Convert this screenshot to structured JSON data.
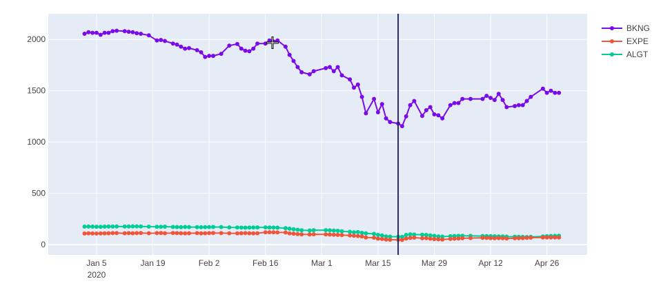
{
  "chart_data": {
    "type": "line",
    "x_axis_type": "date",
    "x_range": [
      "2019-12-24",
      "2020-05-06"
    ],
    "y_range": [
      -100,
      2250
    ],
    "x_ticks": [
      {
        "value": "2020-01-05",
        "label": "Jan 5",
        "sublabel": "2020"
      },
      {
        "value": "2020-01-19",
        "label": "Jan 19"
      },
      {
        "value": "2020-02-02",
        "label": "Feb 2"
      },
      {
        "value": "2020-02-16",
        "label": "Feb 16"
      },
      {
        "value": "2020-03-01",
        "label": "Mar 1"
      },
      {
        "value": "2020-03-15",
        "label": "Mar 15"
      },
      {
        "value": "2020-03-29",
        "label": "Mar 29"
      },
      {
        "value": "2020-04-12",
        "label": "Apr 12"
      },
      {
        "value": "2020-04-26",
        "label": "Apr 26"
      }
    ],
    "y_ticks": [
      0,
      500,
      1000,
      1500,
      2000
    ],
    "gridlines": true,
    "legend_position": "top-right",
    "vertical_line": {
      "x": "2020-03-20",
      "color": "#2a2a5a"
    },
    "plot_bg": "#e5ecf6",
    "series": [
      {
        "name": "BKNG",
        "color": "#7a0be8",
        "x": [
          "2020-01-02",
          "2020-01-03",
          "2020-01-04",
          "2020-01-05",
          "2020-01-06",
          "2020-01-07",
          "2020-01-08",
          "2020-01-09",
          "2020-01-10",
          "2020-01-12",
          "2020-01-13",
          "2020-01-14",
          "2020-01-15",
          "2020-01-16",
          "2020-01-18",
          "2020-01-20",
          "2020-01-21",
          "2020-01-22",
          "2020-01-24",
          "2020-01-25",
          "2020-01-26",
          "2020-01-27",
          "2020-01-28",
          "2020-01-30",
          "2020-01-31",
          "2020-02-01",
          "2020-02-02",
          "2020-02-03",
          "2020-02-05",
          "2020-02-07",
          "2020-02-09",
          "2020-02-10",
          "2020-02-11",
          "2020-02-12",
          "2020-02-13",
          "2020-02-14",
          "2020-02-16",
          "2020-02-17",
          "2020-02-18",
          "2020-02-19",
          "2020-02-21",
          "2020-02-22",
          "2020-02-23",
          "2020-02-24",
          "2020-02-25",
          "2020-02-27",
          "2020-02-28",
          "2020-03-02",
          "2020-03-03",
          "2020-03-04",
          "2020-03-05",
          "2020-03-06",
          "2020-03-08",
          "2020-03-09",
          "2020-03-10",
          "2020-03-11",
          "2020-03-12",
          "2020-03-14",
          "2020-03-15",
          "2020-03-16",
          "2020-03-17",
          "2020-03-18",
          "2020-03-20",
          "2020-03-21",
          "2020-03-22",
          "2020-03-23",
          "2020-03-24",
          "2020-03-26",
          "2020-03-27",
          "2020-03-28",
          "2020-03-29",
          "2020-03-30",
          "2020-03-31",
          "2020-04-02",
          "2020-04-03",
          "2020-04-04",
          "2020-04-05",
          "2020-04-07",
          "2020-04-10",
          "2020-04-11",
          "2020-04-12",
          "2020-04-13",
          "2020-04-14",
          "2020-04-15",
          "2020-04-16",
          "2020-04-18",
          "2020-04-19",
          "2020-04-20",
          "2020-04-21",
          "2020-04-22",
          "2020-04-25",
          "2020-04-26",
          "2020-04-27",
          "2020-04-28",
          "2020-04-29"
        ],
        "y": [
          2055,
          2070,
          2065,
          2065,
          2045,
          2065,
          2065,
          2080,
          2085,
          2080,
          2075,
          2070,
          2060,
          2055,
          2040,
          1990,
          1995,
          1985,
          1960,
          1950,
          1930,
          1910,
          1915,
          1895,
          1875,
          1830,
          1840,
          1840,
          1860,
          1940,
          1955,
          1910,
          1890,
          1885,
          1910,
          1960,
          1960,
          1990,
          1980,
          1990,
          1930,
          1850,
          1790,
          1730,
          1680,
          1660,
          1690,
          1720,
          1730,
          1690,
          1730,
          1650,
          1610,
          1530,
          1560,
          1440,
          1280,
          1420,
          1290,
          1370,
          1230,
          1195,
          1180,
          1155,
          1250,
          1360,
          1400,
          1255,
          1310,
          1340,
          1270,
          1260,
          1230,
          1360,
          1380,
          1380,
          1420,
          1420,
          1420,
          1450,
          1430,
          1410,
          1470,
          1410,
          1340,
          1350,
          1360,
          1360,
          1400,
          1440,
          1520,
          1480,
          1500,
          1480,
          1480
        ]
      },
      {
        "name": "EXPE",
        "color": "#ef553b",
        "x": [
          "2020-01-02",
          "2020-01-03",
          "2020-01-04",
          "2020-01-05",
          "2020-01-06",
          "2020-01-07",
          "2020-01-08",
          "2020-01-09",
          "2020-01-10",
          "2020-01-12",
          "2020-01-13",
          "2020-01-14",
          "2020-01-15",
          "2020-01-16",
          "2020-01-18",
          "2020-01-20",
          "2020-01-21",
          "2020-01-22",
          "2020-01-24",
          "2020-01-25",
          "2020-01-26",
          "2020-01-27",
          "2020-01-28",
          "2020-01-30",
          "2020-01-31",
          "2020-02-01",
          "2020-02-02",
          "2020-02-03",
          "2020-02-05",
          "2020-02-07",
          "2020-02-09",
          "2020-02-10",
          "2020-02-11",
          "2020-02-12",
          "2020-02-13",
          "2020-02-14",
          "2020-02-16",
          "2020-02-17",
          "2020-02-18",
          "2020-02-19",
          "2020-02-21",
          "2020-02-22",
          "2020-02-23",
          "2020-02-24",
          "2020-02-25",
          "2020-02-27",
          "2020-02-28",
          "2020-03-02",
          "2020-03-03",
          "2020-03-04",
          "2020-03-05",
          "2020-03-06",
          "2020-03-08",
          "2020-03-09",
          "2020-03-10",
          "2020-03-11",
          "2020-03-12",
          "2020-03-14",
          "2020-03-15",
          "2020-03-16",
          "2020-03-17",
          "2020-03-18",
          "2020-03-20",
          "2020-03-21",
          "2020-03-22",
          "2020-03-23",
          "2020-03-24",
          "2020-03-26",
          "2020-03-27",
          "2020-03-28",
          "2020-03-29",
          "2020-03-30",
          "2020-03-31",
          "2020-04-02",
          "2020-04-03",
          "2020-04-04",
          "2020-04-05",
          "2020-04-07",
          "2020-04-10",
          "2020-04-11",
          "2020-04-12",
          "2020-04-13",
          "2020-04-14",
          "2020-04-15",
          "2020-04-16",
          "2020-04-18",
          "2020-04-19",
          "2020-04-20",
          "2020-04-21",
          "2020-04-22",
          "2020-04-25",
          "2020-04-26",
          "2020-04-27",
          "2020-04-28",
          "2020-04-29"
        ],
        "y": [
          108,
          110,
          109,
          108,
          109,
          110,
          111,
          112,
          112,
          111,
          112,
          111,
          112,
          113,
          111,
          112,
          113,
          111,
          113,
          112,
          111,
          110,
          111,
          112,
          110,
          111,
          112,
          113,
          112,
          111,
          110,
          111,
          112,
          111,
          110,
          111,
          120,
          121,
          120,
          119,
          118,
          110,
          106,
          102,
          100,
          99,
          101,
          100,
          98,
          96,
          95,
          93,
          90,
          86,
          84,
          80,
          70,
          68,
          58,
          55,
          50,
          48,
          47,
          46,
          60,
          65,
          68,
          62,
          63,
          58,
          54,
          52,
          50,
          55,
          58,
          60,
          62,
          64,
          66,
          65,
          63,
          62,
          64,
          62,
          60,
          62,
          63,
          64,
          66,
          68,
          70,
          69,
          70,
          69,
          70
        ]
      },
      {
        "name": "ALGT",
        "color": "#00cc96",
        "x": [
          "2020-01-02",
          "2020-01-03",
          "2020-01-04",
          "2020-01-05",
          "2020-01-06",
          "2020-01-07",
          "2020-01-08",
          "2020-01-09",
          "2020-01-10",
          "2020-01-12",
          "2020-01-13",
          "2020-01-14",
          "2020-01-15",
          "2020-01-16",
          "2020-01-18",
          "2020-01-20",
          "2020-01-21",
          "2020-01-22",
          "2020-01-24",
          "2020-01-25",
          "2020-01-26",
          "2020-01-27",
          "2020-01-28",
          "2020-01-30",
          "2020-01-31",
          "2020-02-01",
          "2020-02-02",
          "2020-02-03",
          "2020-02-05",
          "2020-02-07",
          "2020-02-09",
          "2020-02-10",
          "2020-02-11",
          "2020-02-12",
          "2020-02-13",
          "2020-02-14",
          "2020-02-16",
          "2020-02-17",
          "2020-02-18",
          "2020-02-19",
          "2020-02-21",
          "2020-02-22",
          "2020-02-23",
          "2020-02-24",
          "2020-02-25",
          "2020-02-27",
          "2020-02-28",
          "2020-03-02",
          "2020-03-03",
          "2020-03-04",
          "2020-03-05",
          "2020-03-06",
          "2020-03-08",
          "2020-03-09",
          "2020-03-10",
          "2020-03-11",
          "2020-03-12",
          "2020-03-14",
          "2020-03-15",
          "2020-03-16",
          "2020-03-17",
          "2020-03-18",
          "2020-03-20",
          "2020-03-21",
          "2020-03-22",
          "2020-03-23",
          "2020-03-24",
          "2020-03-26",
          "2020-03-27",
          "2020-03-28",
          "2020-03-29",
          "2020-03-30",
          "2020-03-31",
          "2020-04-02",
          "2020-04-03",
          "2020-04-04",
          "2020-04-05",
          "2020-04-07",
          "2020-04-10",
          "2020-04-11",
          "2020-04-12",
          "2020-04-13",
          "2020-04-14",
          "2020-04-15",
          "2020-04-16",
          "2020-04-18",
          "2020-04-19",
          "2020-04-20",
          "2020-04-21",
          "2020-04-22",
          "2020-04-25",
          "2020-04-26",
          "2020-04-27",
          "2020-04-28",
          "2020-04-29"
        ],
        "y": [
          175,
          176,
          175,
          173,
          174,
          175,
          176,
          176,
          177,
          176,
          177,
          178,
          178,
          177,
          175,
          173,
          174,
          175,
          172,
          171,
          170,
          172,
          171,
          170,
          169,
          170,
          171,
          172,
          171,
          168,
          167,
          166,
          165,
          166,
          167,
          168,
          168,
          167,
          166,
          165,
          160,
          155,
          150,
          145,
          140,
          138,
          140,
          141,
          139,
          137,
          135,
          130,
          125,
          120,
          122,
          115,
          110,
          105,
          95,
          90,
          80,
          78,
          77,
          75,
          95,
          100,
          98,
          96,
          95,
          90,
          85,
          80,
          78,
          82,
          84,
          85,
          86,
          85,
          84,
          83,
          82,
          81,
          80,
          79,
          78,
          77,
          76,
          75,
          74,
          75,
          80,
          82,
          84,
          85,
          86
        ]
      }
    ]
  }
}
